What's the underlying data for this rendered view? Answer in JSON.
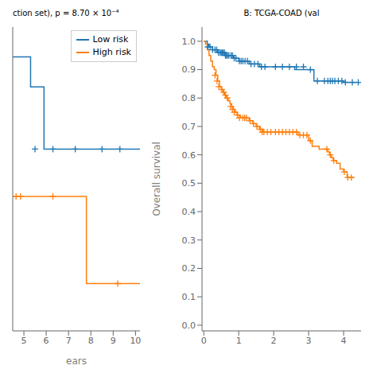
{
  "chart_data": [
    {
      "type": "line",
      "title": "ction set), p = 8.70 × 10⁻⁴",
      "x_label": "ears",
      "xlim": [
        4.5,
        10.2
      ],
      "xticks": [
        5,
        6,
        7,
        8,
        9,
        10
      ],
      "ylim": [
        0.27,
        0.88
      ],
      "tick_labels": "x",
      "grid": false,
      "legend": "upper right",
      "series": [
        {
          "name": "Low risk",
          "color": "#1f77b4",
          "type": "line",
          "line_style": "step",
          "x": [
            4.5,
            5.3,
            5.3,
            5.9,
            5.9,
            10.2
          ],
          "values": [
            0.82,
            0.82,
            0.76,
            0.76,
            0.635,
            0.635
          ]
        },
        {
          "color": "#1f77b4",
          "type": "scatter",
          "marker": "plus",
          "x": [
            5.5,
            6.3,
            7.3,
            8.5,
            9.3
          ],
          "values": [
            0.635,
            0.635,
            0.635,
            0.635,
            0.635
          ]
        },
        {
          "name": "High risk",
          "color": "#ff7f0e",
          "type": "line",
          "line_style": "step",
          "x": [
            4.5,
            4.5,
            7.8,
            7.8,
            10.2
          ],
          "values": [
            0.54,
            0.54,
            0.54,
            0.365,
            0.365
          ]
        },
        {
          "color": "#ff7f0e",
          "type": "scatter",
          "marker": "plus",
          "x": [
            4.65,
            4.85,
            6.3,
            9.2
          ],
          "values": [
            0.54,
            0.54,
            0.54,
            0.365
          ]
        }
      ]
    },
    {
      "type": "line",
      "title": "B: TCGA-COAD (val",
      "y_label": "Overall survival",
      "xlim": [
        -0.05,
        4.5
      ],
      "xticks": [
        0,
        1,
        2,
        3,
        4
      ],
      "ylim": [
        -0.02,
        1.05
      ],
      "yticks": [
        {
          "value": 0.0,
          "label": "0.0"
        },
        0.1,
        0.2,
        0.3,
        0.4,
        0.5,
        0.6,
        0.7,
        0.8,
        0.9,
        {
          "value": 1.0,
          "label": "1.0"
        }
      ],
      "grid": false,
      "series": [
        {
          "color": "#1f77b4",
          "type": "line",
          "line_style": "step",
          "x": [
            0.0,
            0.05,
            0.1,
            0.15,
            0.2,
            0.25,
            0.3,
            0.35,
            0.4,
            0.45,
            0.5,
            0.55,
            0.6,
            0.65,
            0.7,
            0.75,
            0.8,
            0.85,
            0.9,
            0.95,
            1.0,
            1.05,
            1.1,
            1.15,
            1.2,
            1.3,
            1.4,
            1.5,
            1.6,
            1.7,
            1.8,
            1.9,
            2.0,
            2.1,
            2.2,
            2.3,
            2.4,
            2.5,
            2.6,
            2.7,
            2.8,
            2.9,
            3.0,
            3.1,
            3.15,
            3.2,
            3.3,
            3.4,
            3.5,
            3.6,
            3.7,
            3.8,
            3.9,
            4.0,
            4.1,
            4.2,
            4.3,
            4.4
          ],
          "values": [
            1.0,
            1.0,
            0.99,
            0.98,
            0.98,
            0.97,
            0.97,
            0.97,
            0.96,
            0.96,
            0.96,
            0.96,
            0.95,
            0.95,
            0.95,
            0.95,
            0.95,
            0.94,
            0.94,
            0.94,
            0.93,
            0.93,
            0.93,
            0.93,
            0.93,
            0.92,
            0.92,
            0.92,
            0.91,
            0.91,
            0.91,
            0.91,
            0.91,
            0.91,
            0.91,
            0.91,
            0.91,
            0.91,
            0.9,
            0.9,
            0.9,
            0.9,
            0.9,
            0.9,
            0.86,
            0.86,
            0.86,
            0.86,
            0.86,
            0.86,
            0.86,
            0.86,
            0.86,
            0.855,
            0.855,
            0.855,
            0.855,
            0.855
          ]
        },
        {
          "color": "#1f77b4",
          "type": "scatter",
          "marker": "plus",
          "x": [
            0.12,
            0.18,
            0.25,
            0.32,
            0.37,
            0.42,
            0.47,
            0.5,
            0.53,
            0.56,
            0.59,
            0.62,
            0.65,
            0.68,
            0.72,
            0.78,
            0.82,
            0.87,
            0.92,
            1.02,
            1.07,
            1.12,
            1.18,
            1.25,
            1.35,
            1.45,
            1.55,
            1.65,
            1.75,
            2.05,
            2.25,
            2.45,
            2.65,
            2.85,
            3.05,
            3.25,
            3.45,
            3.55,
            3.62,
            3.68,
            3.75,
            3.85,
            3.95,
            4.05,
            4.25,
            4.42
          ],
          "values": [
            0.98,
            0.98,
            0.97,
            0.97,
            0.97,
            0.96,
            0.96,
            0.96,
            0.96,
            0.96,
            0.96,
            0.95,
            0.95,
            0.95,
            0.95,
            0.95,
            0.95,
            0.94,
            0.94,
            0.93,
            0.93,
            0.93,
            0.93,
            0.93,
            0.92,
            0.92,
            0.92,
            0.91,
            0.91,
            0.91,
            0.91,
            0.91,
            0.91,
            0.91,
            0.9,
            0.86,
            0.86,
            0.86,
            0.86,
            0.86,
            0.86,
            0.86,
            0.86,
            0.855,
            0.855,
            0.855
          ]
        },
        {
          "color": "#ff7f0e",
          "type": "line",
          "line_style": "step",
          "x": [
            0.0,
            0.05,
            0.1,
            0.15,
            0.2,
            0.25,
            0.3,
            0.35,
            0.4,
            0.45,
            0.5,
            0.55,
            0.6,
            0.65,
            0.7,
            0.75,
            0.8,
            0.85,
            0.9,
            0.95,
            1.0,
            1.05,
            1.1,
            1.15,
            1.2,
            1.3,
            1.4,
            1.5,
            1.6,
            1.7,
            1.8,
            1.9,
            2.0,
            2.1,
            2.2,
            2.3,
            2.4,
            2.5,
            2.6,
            2.7,
            2.8,
            2.9,
            3.0,
            3.1,
            3.2,
            3.3,
            3.4,
            3.5,
            3.55,
            3.6,
            3.65,
            3.7,
            3.8,
            3.9,
            4.0,
            4.1,
            4.2,
            4.3
          ],
          "values": [
            1.0,
            0.99,
            0.97,
            0.95,
            0.93,
            0.91,
            0.9,
            0.88,
            0.86,
            0.84,
            0.83,
            0.82,
            0.81,
            0.8,
            0.79,
            0.78,
            0.77,
            0.76,
            0.75,
            0.74,
            0.74,
            0.73,
            0.73,
            0.73,
            0.73,
            0.72,
            0.71,
            0.7,
            0.69,
            0.68,
            0.68,
            0.68,
            0.68,
            0.68,
            0.68,
            0.68,
            0.68,
            0.68,
            0.68,
            0.67,
            0.67,
            0.67,
            0.65,
            0.63,
            0.63,
            0.62,
            0.62,
            0.62,
            0.61,
            0.6,
            0.59,
            0.58,
            0.57,
            0.55,
            0.54,
            0.52,
            0.52,
            0.52
          ]
        },
        {
          "color": "#ff7f0e",
          "type": "scatter",
          "marker": "plus",
          "x": [
            0.32,
            0.38,
            0.43,
            0.52,
            0.57,
            0.62,
            0.67,
            0.77,
            0.82,
            0.87,
            0.97,
            1.02,
            1.12,
            1.17,
            1.22,
            1.32,
            1.42,
            1.52,
            1.62,
            1.67,
            1.72,
            1.82,
            1.92,
            2.05,
            2.15,
            2.25,
            2.35,
            2.45,
            2.55,
            2.65,
            2.75,
            2.85,
            2.95,
            3.05,
            3.52,
            3.62,
            3.72,
            4.02,
            4.12,
            4.22
          ],
          "values": [
            0.88,
            0.86,
            0.84,
            0.83,
            0.82,
            0.81,
            0.8,
            0.77,
            0.76,
            0.75,
            0.74,
            0.73,
            0.73,
            0.73,
            0.73,
            0.72,
            0.71,
            0.7,
            0.69,
            0.68,
            0.68,
            0.68,
            0.68,
            0.68,
            0.68,
            0.68,
            0.68,
            0.68,
            0.68,
            0.68,
            0.67,
            0.67,
            0.67,
            0.65,
            0.62,
            0.6,
            0.58,
            0.54,
            0.52,
            0.52
          ]
        }
      ]
    }
  ]
}
